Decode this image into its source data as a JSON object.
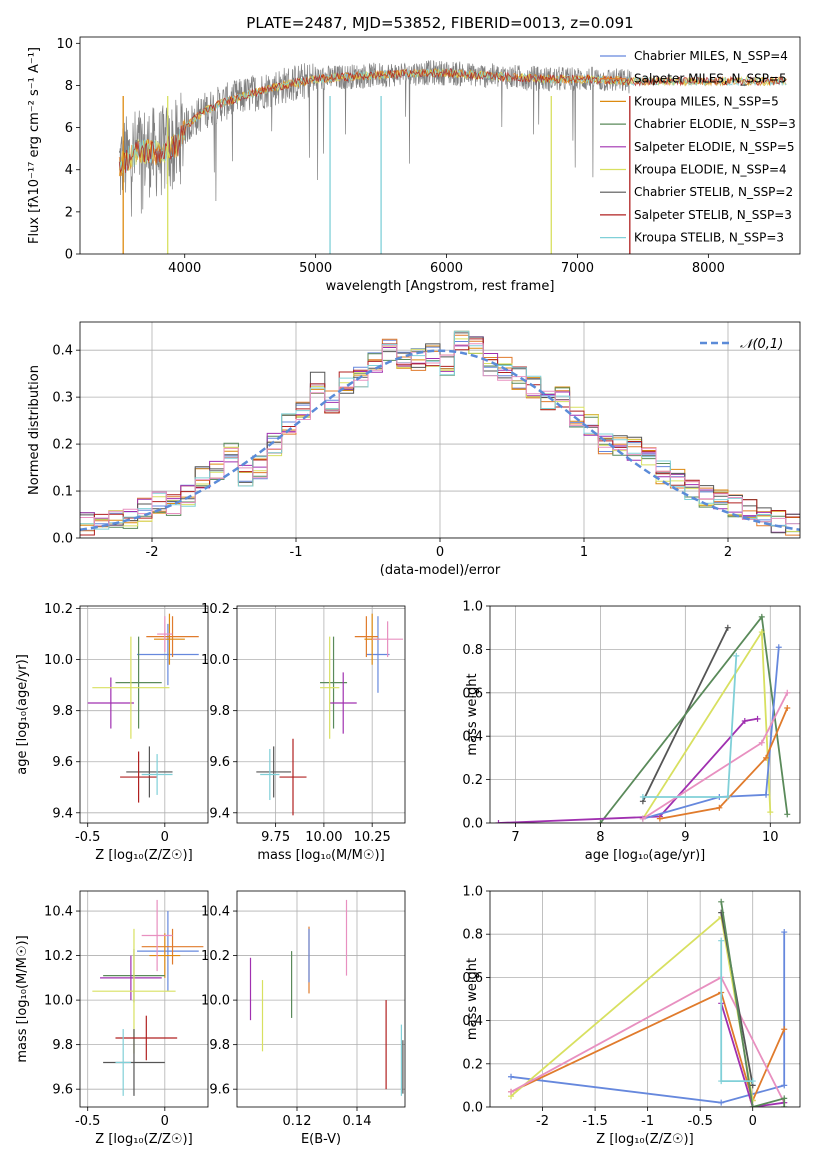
{
  "colors": [
    "#6688dd",
    "#e07b2c",
    "#dd8a10",
    "#5a8a5a",
    "#a030b0",
    "#d8e060",
    "#555555",
    "#b02020",
    "#80d0d8",
    "#e890c0"
  ],
  "chart_data": [
    {
      "id": "spectrum",
      "type": "line",
      "title": "PLATE=2487, MJD=53852, FIBERID=0013, z=0.091",
      "xlabel": "wavelength [Angstrom, rest frame]",
      "ylabel": "Flux [fλ10⁻¹⁷ erg cm⁻² s⁻¹ A⁻¹]",
      "xlim": [
        3200,
        8700
      ],
      "ylim": [
        0,
        10.3
      ],
      "xticks": [
        4000,
        5000,
        6000,
        7000,
        8000
      ],
      "yticks": [
        0,
        2,
        4,
        6,
        8,
        10
      ],
      "observed_color": "#808080",
      "continuum_x": [
        3500,
        3650,
        3800,
        3950,
        4000,
        4150,
        4300,
        4500,
        4750,
        5000,
        5200,
        5500,
        5800,
        6000,
        6200,
        6500,
        6800,
        7100,
        7400
      ],
      "continuum_y": [
        4.2,
        4.9,
        4.8,
        5.2,
        6.0,
        6.8,
        7.2,
        7.6,
        8.0,
        8.3,
        8.4,
        8.5,
        8.6,
        8.6,
        8.5,
        8.4,
        8.3,
        8.3,
        8.2
      ],
      "legend": [
        "Chabrier MILES, N_SSP=4",
        "Salpeter MILES, N_SSP=5",
        "Kroupa MILES, N_SSP=5",
        "Chabrier ELODIE, N_SSP=3",
        "Salpeter ELODIE, N_SSP=5",
        "Kroupa ELODIE, N_SSP=4",
        "Chabrier STELIB, N_SSP=2",
        "Salpeter STELIB, N_SSP=3",
        "Kroupa STELIB, N_SSP=3"
      ],
      "grid": false
    },
    {
      "id": "residuals",
      "type": "line",
      "xlabel": "(data-model)/error",
      "ylabel": "Normed distribution",
      "xlim": [
        -2.5,
        2.5
      ],
      "ylim": [
        0,
        0.46
      ],
      "xticks": [
        -2,
        -1,
        0,
        1,
        2
      ],
      "yticks": [
        0.0,
        0.1,
        0.2,
        0.3,
        0.4
      ],
      "grid": true,
      "legend": [
        "𝒩(0,1)"
      ],
      "bin_width": 0.1,
      "hist_x": [
        -2.45,
        -2.35,
        -2.25,
        -2.15,
        -2.05,
        -1.95,
        -1.85,
        -1.75,
        -1.65,
        -1.55,
        -1.45,
        -1.35,
        -1.25,
        -1.15,
        -1.05,
        -0.95,
        -0.85,
        -0.75,
        -0.65,
        -0.55,
        -0.45,
        -0.35,
        -0.25,
        -0.15,
        -0.05,
        0.05,
        0.15,
        0.25,
        0.35,
        0.45,
        0.55,
        0.65,
        0.75,
        0.85,
        0.95,
        1.05,
        1.15,
        1.25,
        1.35,
        1.45,
        1.55,
        1.65,
        1.75,
        1.85,
        1.95,
        2.05,
        2.15,
        2.25,
        2.35,
        2.45
      ],
      "hist_y": [
        0.03,
        0.035,
        0.04,
        0.045,
        0.06,
        0.075,
        0.07,
        0.09,
        0.13,
        0.14,
        0.18,
        0.13,
        0.15,
        0.2,
        0.24,
        0.27,
        0.33,
        0.29,
        0.33,
        0.34,
        0.37,
        0.4,
        0.38,
        0.38,
        0.39,
        0.37,
        0.42,
        0.41,
        0.37,
        0.36,
        0.34,
        0.32,
        0.29,
        0.3,
        0.26,
        0.24,
        0.2,
        0.2,
        0.19,
        0.18,
        0.14,
        0.13,
        0.1,
        0.09,
        0.08,
        0.07,
        0.06,
        0.05,
        0.035,
        0.03
      ]
    },
    {
      "id": "age-vs-Z",
      "type": "scatter",
      "xlabel": "Z [log₁₀(Z/Z☉)]",
      "ylabel": "age  [log₁₀(age/yr)]",
      "xlim": [
        -0.55,
        0.28
      ],
      "ylim": [
        9.36,
        10.21
      ],
      "xticks": [
        -0.5,
        0.0
      ],
      "yticks": [
        9.4,
        9.6,
        9.8,
        10.0,
        10.2
      ],
      "grid": true,
      "points": [
        {
          "x": 0.02,
          "y": 10.02,
          "ex": 0.2,
          "ey": 0.12,
          "c": 0
        },
        {
          "x": 0.05,
          "y": 10.09,
          "ex": 0.17,
          "ey": 0.08,
          "c": 1
        },
        {
          "x": 0.03,
          "y": 10.08,
          "ex": 0.1,
          "ey": 0.1,
          "c": 2
        },
        {
          "x": -0.17,
          "y": 9.91,
          "ex": 0.15,
          "ey": 0.18,
          "c": 3
        },
        {
          "x": -0.35,
          "y": 9.83,
          "ex": 0.15,
          "ey": 0.1,
          "c": 4
        },
        {
          "x": -0.22,
          "y": 9.89,
          "ex": 0.25,
          "ey": 0.2,
          "c": 5
        },
        {
          "x": -0.1,
          "y": 9.56,
          "ex": 0.15,
          "ey": 0.1,
          "c": 6
        },
        {
          "x": -0.17,
          "y": 9.54,
          "ex": 0.12,
          "ey": 0.1,
          "c": 7
        },
        {
          "x": -0.05,
          "y": 9.55,
          "ex": 0.1,
          "ey": 0.08,
          "c": 8
        },
        {
          "x": 0.0,
          "y": 10.1,
          "ex": 0.05,
          "ey": 0.07,
          "c": 9
        }
      ]
    },
    {
      "id": "age-vs-mass",
      "type": "scatter",
      "xlabel": "mass [log₁₀(M/M☉)]",
      "xlim": [
        9.55,
        10.42
      ],
      "ylim": [
        9.36,
        10.21
      ],
      "xticks": [
        9.75,
        10.0,
        10.25
      ],
      "xtick_labels": [
        "9.75",
        "10.00",
        "10.25"
      ],
      "yticks": [
        9.4,
        9.6,
        9.8,
        10.0,
        10.2
      ],
      "grid": true,
      "points": [
        {
          "x": 10.28,
          "y": 10.02,
          "ex": 0.06,
          "ey": 0.15,
          "c": 0
        },
        {
          "x": 10.22,
          "y": 10.09,
          "ex": 0.06,
          "ey": 0.08,
          "c": 1
        },
        {
          "x": 10.25,
          "y": 10.08,
          "ex": 0.04,
          "ey": 0.1,
          "c": 2
        },
        {
          "x": 10.05,
          "y": 9.91,
          "ex": 0.07,
          "ey": 0.18,
          "c": 3
        },
        {
          "x": 10.1,
          "y": 9.83,
          "ex": 0.07,
          "ey": 0.12,
          "c": 4
        },
        {
          "x": 10.03,
          "y": 9.89,
          "ex": 0.05,
          "ey": 0.2,
          "c": 5
        },
        {
          "x": 9.74,
          "y": 9.56,
          "ex": 0.09,
          "ey": 0.1,
          "c": 6
        },
        {
          "x": 9.84,
          "y": 9.54,
          "ex": 0.07,
          "ey": 0.15,
          "c": 7
        },
        {
          "x": 9.72,
          "y": 9.55,
          "ex": 0.05,
          "ey": 0.1,
          "c": 8
        },
        {
          "x": 10.33,
          "y": 10.08,
          "ex": 0.08,
          "ey": 0.07,
          "c": 9
        }
      ]
    },
    {
      "id": "mass-weight-vs-age",
      "type": "line",
      "xlabel": "age  [log₁₀(age/yr)]",
      "ylabel": "mass weight",
      "xlim": [
        6.7,
        10.35
      ],
      "ylim": [
        0,
        1.0
      ],
      "xticks": [
        7,
        8,
        9,
        10
      ],
      "yticks": [
        0.0,
        0.2,
        0.4,
        0.6,
        0.8,
        1.0
      ],
      "grid": true,
      "series": [
        {
          "c": 6,
          "x": [
            8.5,
            9.5
          ],
          "y": [
            0.1,
            0.9
          ]
        },
        {
          "c": 3,
          "x": [
            8.0,
            9.9,
            10.2
          ],
          "y": [
            0.0,
            0.95,
            0.04
          ]
        },
        {
          "c": 5,
          "x": [
            8.5,
            9.9,
            10.0
          ],
          "y": [
            0.02,
            0.88,
            0.05
          ]
        },
        {
          "c": 4,
          "x": [
            6.8,
            8.7,
            9.7,
            9.85
          ],
          "y": [
            0.0,
            0.03,
            0.47,
            0.48
          ]
        },
        {
          "c": 0,
          "x": [
            8.5,
            9.4,
            9.95,
            10.1
          ],
          "y": [
            0.02,
            0.12,
            0.13,
            0.81
          ]
        },
        {
          "c": 1,
          "x": [
            8.7,
            9.4,
            9.95,
            10.2
          ],
          "y": [
            0.02,
            0.07,
            0.3,
            0.53
          ]
        },
        {
          "c": 9,
          "x": [
            8.5,
            9.9,
            10.2
          ],
          "y": [
            0.02,
            0.37,
            0.6
          ]
        },
        {
          "c": 8,
          "x": [
            8.5,
            9.5,
            9.6
          ],
          "y": [
            0.12,
            0.12,
            0.77
          ]
        }
      ]
    },
    {
      "id": "mass-vs-Z",
      "type": "scatter",
      "xlabel": "Z [log₁₀(Z/Z☉)]",
      "ylabel": "mass [log₁₀(M/M☉)]",
      "xlim": [
        -0.55,
        0.28
      ],
      "ylim": [
        9.52,
        10.49
      ],
      "xticks": [
        -0.5,
        0.0
      ],
      "yticks": [
        9.6,
        9.8,
        10.0,
        10.2,
        10.4
      ],
      "grid": true,
      "points": [
        {
          "x": 0.02,
          "y": 10.22,
          "ex": 0.2,
          "ey": 0.18,
          "c": 0
        },
        {
          "x": 0.05,
          "y": 10.24,
          "ex": 0.2,
          "ey": 0.08,
          "c": 1
        },
        {
          "x": 0.0,
          "y": 10.2,
          "ex": 0.1,
          "ey": 0.1,
          "c": 2
        },
        {
          "x": -0.2,
          "y": 10.11,
          "ex": 0.2,
          "ey": 0.12,
          "c": 3
        },
        {
          "x": -0.22,
          "y": 10.1,
          "ex": 0.2,
          "ey": 0.1,
          "c": 4
        },
        {
          "x": -0.2,
          "y": 10.04,
          "ex": 0.27,
          "ey": 0.28,
          "c": 5
        },
        {
          "x": -0.2,
          "y": 9.72,
          "ex": 0.2,
          "ey": 0.15,
          "c": 6
        },
        {
          "x": -0.12,
          "y": 9.83,
          "ex": 0.2,
          "ey": 0.1,
          "c": 7
        },
        {
          "x": -0.27,
          "y": 9.72,
          "ex": 0.05,
          "ey": 0.15,
          "c": 8
        },
        {
          "x": -0.05,
          "y": 10.29,
          "ex": 0.1,
          "ey": 0.16,
          "c": 9
        }
      ]
    },
    {
      "id": "mass-vs-EBV",
      "type": "scatter",
      "xlabel": "E(B-V)",
      "xlim": [
        0.1,
        0.156
      ],
      "ylim": [
        9.52,
        10.49
      ],
      "xticks": [
        0.12,
        0.14
      ],
      "yticks": [
        9.6,
        9.8,
        10.0,
        10.2,
        10.4
      ],
      "grid": true,
      "points": [
        {
          "x": 0.1045,
          "y": 10.05,
          "ex": 0,
          "ey": 0.14,
          "c": 4
        },
        {
          "x": 0.1085,
          "y": 9.93,
          "ex": 0,
          "ey": 0.16,
          "c": 5
        },
        {
          "x": 0.1182,
          "y": 10.07,
          "ex": 0,
          "ey": 0.15,
          "c": 3
        },
        {
          "x": 0.124,
          "y": 10.18,
          "ex": 0,
          "ey": 0.15,
          "c": 1
        },
        {
          "x": 0.124,
          "y": 10.2,
          "ex": 0,
          "ey": 0.12,
          "c": 0
        },
        {
          "x": 0.1365,
          "y": 10.28,
          "ex": 0,
          "ey": 0.17,
          "c": 9
        },
        {
          "x": 0.1497,
          "y": 9.8,
          "ex": 0,
          "ey": 0.2,
          "c": 7
        },
        {
          "x": 0.1548,
          "y": 9.73,
          "ex": 0,
          "ey": 0.16,
          "c": 8
        },
        {
          "x": 0.1553,
          "y": 9.7,
          "ex": 0,
          "ey": 0.12,
          "c": 6
        }
      ]
    },
    {
      "id": "mass-weight-vs-Z",
      "type": "line",
      "xlabel": "Z [log₁₀(Z/Z☉)]",
      "ylabel": "mass weight",
      "xlim": [
        -2.5,
        0.45
      ],
      "ylim": [
        0,
        1.0
      ],
      "xticks": [
        -2.0,
        -1.5,
        -1.0,
        -0.5,
        0.0
      ],
      "yticks": [
        0.0,
        0.2,
        0.4,
        0.6,
        0.8,
        1.0
      ],
      "grid": true,
      "series": [
        {
          "c": 0,
          "x": [
            -2.3,
            -0.3,
            0.3,
            0.3
          ],
          "y": [
            0.14,
            0.02,
            0.1,
            0.81
          ]
        },
        {
          "c": 1,
          "x": [
            -2.3,
            -0.3,
            0.0,
            0.3
          ],
          "y": [
            0.07,
            0.53,
            0.03,
            0.36
          ]
        },
        {
          "c": 5,
          "x": [
            -2.3,
            -0.3,
            0.0
          ],
          "y": [
            0.05,
            0.88,
            0.03
          ]
        },
        {
          "c": 9,
          "x": [
            -2.3,
            -0.3,
            0.3
          ],
          "y": [
            0.07,
            0.6,
            0.02
          ]
        },
        {
          "c": 4,
          "x": [
            -0.3,
            0.0,
            0.3
          ],
          "y": [
            0.48,
            0.0,
            0.02
          ]
        },
        {
          "c": 6,
          "x": [
            -0.3,
            0.0
          ],
          "y": [
            0.9,
            0.1
          ]
        },
        {
          "c": 3,
          "x": [
            -0.3,
            0.0,
            0.3,
            0.3
          ],
          "y": [
            0.95,
            0.0,
            0.04,
            0.0
          ]
        },
        {
          "c": 8,
          "x": [
            -0.3,
            -0.3,
            0.0
          ],
          "y": [
            0.77,
            0.12,
            0.12
          ]
        }
      ]
    }
  ]
}
